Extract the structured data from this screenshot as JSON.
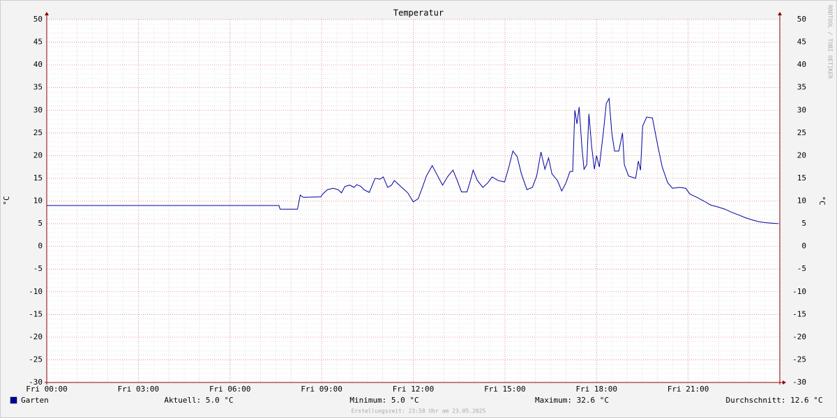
{
  "chart_data": {
    "type": "line",
    "title": "Temperatur",
    "y_label": "°C",
    "y2_label": "°C",
    "watermark": "RRDTOOL / TOBI OETIKER",
    "footer": "Erstellungszeit: 23:58 Uhr am 23.05.2025",
    "xlim": [
      0,
      24
    ],
    "xticks": [
      {
        "value": 0,
        "label": "Fri 00:00"
      },
      {
        "value": 3,
        "label": "Fri 03:00"
      },
      {
        "value": 6,
        "label": "Fri 06:00"
      },
      {
        "value": 9,
        "label": "Fri 09:00"
      },
      {
        "value": 12,
        "label": "Fri 12:00"
      },
      {
        "value": 15,
        "label": "Fri 15:00"
      },
      {
        "value": 18,
        "label": "Fri 18:00"
      },
      {
        "value": 21,
        "label": "Fri 21:00"
      }
    ],
    "ylim": [
      -30,
      50
    ],
    "yticks": [
      -30,
      -25,
      -20,
      -15,
      -10,
      -5,
      0,
      5,
      10,
      15,
      20,
      25,
      30,
      35,
      40,
      45,
      50
    ],
    "grid": true,
    "x": [
      0,
      7.6,
      7.64,
      8.21,
      8.3,
      8.4,
      8.97,
      9.03,
      9.19,
      9.38,
      9.54,
      9.65,
      9.76,
      9.92,
      10.06,
      10.15,
      10.29,
      10.38,
      10.56,
      10.75,
      10.91,
      11.02,
      11.16,
      11.29,
      11.38,
      11.59,
      11.82,
      12.0,
      12.16,
      12.3,
      12.43,
      12.62,
      12.8,
      12.96,
      13.14,
      13.3,
      13.44,
      13.58,
      13.76,
      13.87,
      13.96,
      14.1,
      14.28,
      14.44,
      14.58,
      14.78,
      14.99,
      15.13,
      15.26,
      15.4,
      15.54,
      15.72,
      15.9,
      16.04,
      16.18,
      16.31,
      16.43,
      16.54,
      16.72,
      16.86,
      17.0,
      17.13,
      17.22,
      17.29,
      17.36,
      17.43,
      17.52,
      17.59,
      17.68,
      17.75,
      17.84,
      17.93,
      18.0,
      18.09,
      18.23,
      18.32,
      18.41,
      18.5,
      18.59,
      18.73,
      18.85,
      18.91,
      19.05,
      19.28,
      19.37,
      19.44,
      19.51,
      19.64,
      19.83,
      20.01,
      20.15,
      20.33,
      20.49,
      20.72,
      20.92,
      21.06,
      21.29,
      21.51,
      21.74,
      21.97,
      22.2,
      22.43,
      22.66,
      22.88,
      23.11,
      23.34,
      23.57,
      23.96
    ],
    "series": [
      {
        "name": "Garten",
        "color": "#0000a0",
        "values": [
          9.0,
          9.0,
          8.2,
          8.2,
          11.3,
          10.8,
          10.9,
          11.5,
          12.5,
          12.8,
          12.5,
          11.8,
          13.2,
          13.5,
          13.0,
          13.6,
          13.2,
          12.5,
          11.9,
          15.0,
          14.8,
          15.3,
          13.0,
          13.5,
          14.5,
          13.2,
          11.8,
          9.8,
          10.5,
          13.0,
          15.5,
          17.8,
          15.5,
          13.5,
          15.5,
          16.8,
          14.5,
          12.0,
          12.0,
          14.5,
          16.8,
          14.5,
          13.0,
          14.0,
          15.3,
          14.5,
          14.2,
          17.5,
          21.0,
          19.8,
          16.0,
          12.5,
          13.0,
          15.5,
          20.8,
          17.0,
          19.5,
          16.0,
          14.5,
          12.2,
          14.0,
          16.5,
          16.5,
          30.0,
          27.0,
          30.7,
          22.0,
          17.0,
          18.0,
          29.2,
          22.0,
          17.0,
          20.0,
          17.5,
          25.5,
          31.5,
          32.6,
          25.0,
          21.0,
          21.0,
          25.0,
          18.0,
          15.5,
          15.0,
          18.8,
          16.8,
          26.5,
          28.5,
          28.3,
          22.0,
          17.5,
          14.0,
          12.8,
          13.0,
          12.8,
          11.5,
          10.8,
          10.0,
          9.1,
          8.7,
          8.2,
          7.5,
          6.9,
          6.3,
          5.8,
          5.4,
          5.2,
          5.0
        ]
      }
    ],
    "legend_stats": [
      "Aktuell: 5.0 °C",
      "Minimum: 5.0 °C",
      "Maximum: 32.6 °C",
      "Durchschnitt: 12.6 °C"
    ]
  }
}
